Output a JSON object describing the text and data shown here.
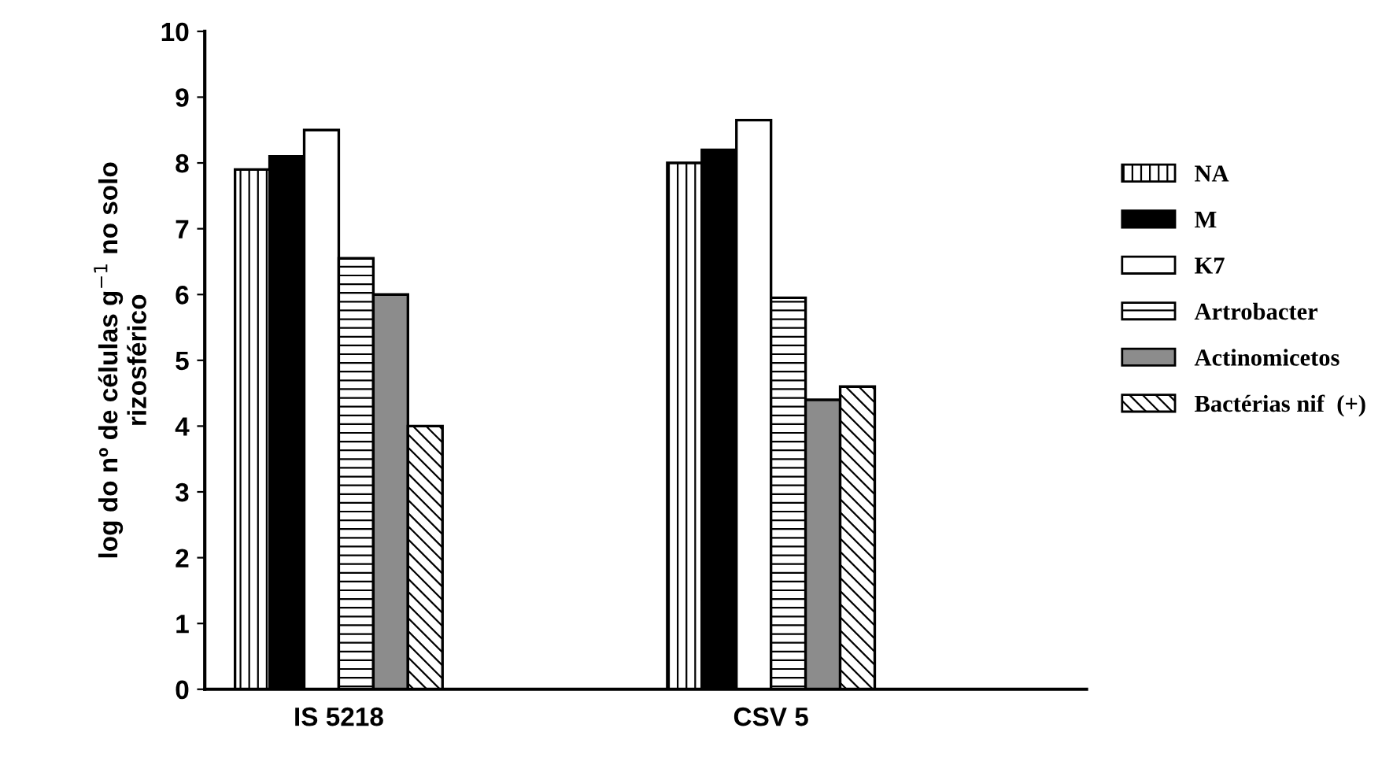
{
  "chart_data": {
    "type": "bar",
    "ylabel": "log do nº de células g$^{−1}$ no solo\nrizosférico",
    "categories": [
      "IS 5218",
      "CSV 5"
    ],
    "series": [
      {
        "name": "NA",
        "color": "#000000",
        "values": [
          7.9,
          8.0
        ]
      },
      {
        "name": "M",
        "color": "#000000",
        "values": [
          8.1,
          8.2
        ]
      },
      {
        "name": "K7",
        "color": "#ffffff",
        "values": [
          8.5,
          8.65
        ]
      },
      {
        "name": "Artrobacter",
        "color": "#000000",
        "values": [
          6.55,
          5.95
        ]
      },
      {
        "name": "Actinomicetos",
        "color": "#8c8c8c",
        "values": [
          6.0,
          4.4
        ]
      },
      {
        "name": "Bactérias nif  (+)",
        "color": "#000000",
        "values": [
          4.0,
          4.6
        ]
      }
    ],
    "ylim": [
      0,
      10
    ],
    "yticks": [
      0,
      1,
      2,
      3,
      4,
      5,
      6,
      7,
      8,
      9,
      10
    ],
    "grid": false,
    "legend": "right"
  }
}
